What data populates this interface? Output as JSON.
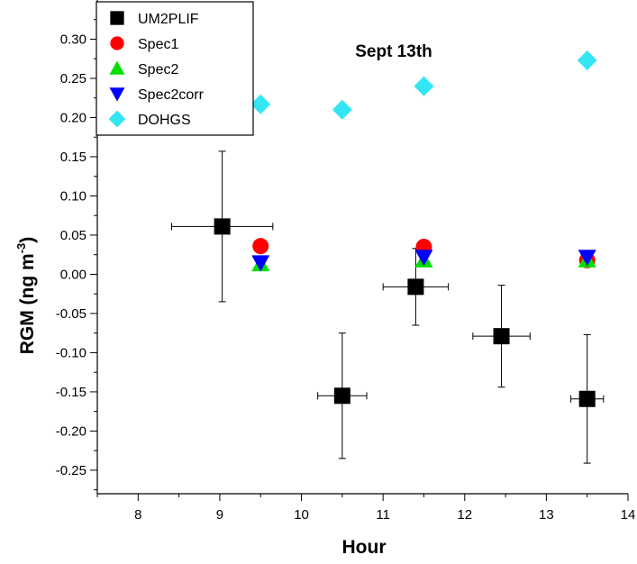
{
  "chart_data": {
    "type": "scatter",
    "title": "Sept 13th",
    "xlabel": "Hour",
    "ylabel_main": "RGM (ng m",
    "ylabel_sup": "-3",
    "ylabel_close": ")",
    "xlim": [
      7.5,
      14
    ],
    "ylim": [
      -0.28,
      0.35
    ],
    "xticks": [
      8,
      9,
      10,
      11,
      12,
      13,
      14
    ],
    "yticks": [
      -0.25,
      -0.2,
      -0.15,
      -0.1,
      -0.05,
      0.0,
      0.05,
      0.1,
      0.15,
      0.2,
      0.25,
      0.3
    ],
    "ytick_labels": [
      "-0.25",
      "-0.20",
      "-0.15",
      "-0.10",
      "-0.05",
      "0.00",
      "0.05",
      "0.10",
      "0.15",
      "0.20",
      "0.25",
      "0.30"
    ],
    "legend_position": "top-left",
    "series": [
      {
        "name": "UM2PLIF",
        "marker": "square",
        "color": "#000000",
        "points": [
          {
            "x": 9.03,
            "y": 0.061,
            "xerr": 0.62,
            "yerr": 0.096
          },
          {
            "x": 10.5,
            "y": -0.155,
            "xerr": 0.3,
            "yerr": 0.08
          },
          {
            "x": 11.4,
            "y": -0.016,
            "xerr": 0.4,
            "yerr": 0.049
          },
          {
            "x": 12.45,
            "y": -0.079,
            "xerr": 0.35,
            "yerr": 0.065
          },
          {
            "x": 13.5,
            "y": -0.159,
            "xerr": 0.2,
            "yerr": 0.082
          }
        ]
      },
      {
        "name": "Spec1",
        "marker": "circle",
        "color": "#ff0000",
        "points": [
          {
            "x": 9.5,
            "y": 0.036
          },
          {
            "x": 11.5,
            "y": 0.035
          },
          {
            "x": 13.5,
            "y": 0.018
          }
        ]
      },
      {
        "name": "Spec2",
        "marker": "triangle-up",
        "color": "#00e000",
        "points": [
          {
            "x": 9.5,
            "y": 0.013
          },
          {
            "x": 11.5,
            "y": 0.018
          },
          {
            "x": 13.5,
            "y": 0.018
          }
        ]
      },
      {
        "name": "Spec2corr",
        "marker": "triangle-down",
        "color": "#0000ff",
        "points": [
          {
            "x": 9.5,
            "y": 0.015
          },
          {
            "x": 11.5,
            "y": 0.022
          },
          {
            "x": 13.5,
            "y": 0.022
          }
        ]
      },
      {
        "name": "DOHGS",
        "marker": "diamond",
        "color": "#33e6f2",
        "points": [
          {
            "x": 9.5,
            "y": 0.217
          },
          {
            "x": 10.5,
            "y": 0.21
          },
          {
            "x": 11.5,
            "y": 0.24
          },
          {
            "x": 13.5,
            "y": 0.273
          }
        ]
      }
    ]
  }
}
